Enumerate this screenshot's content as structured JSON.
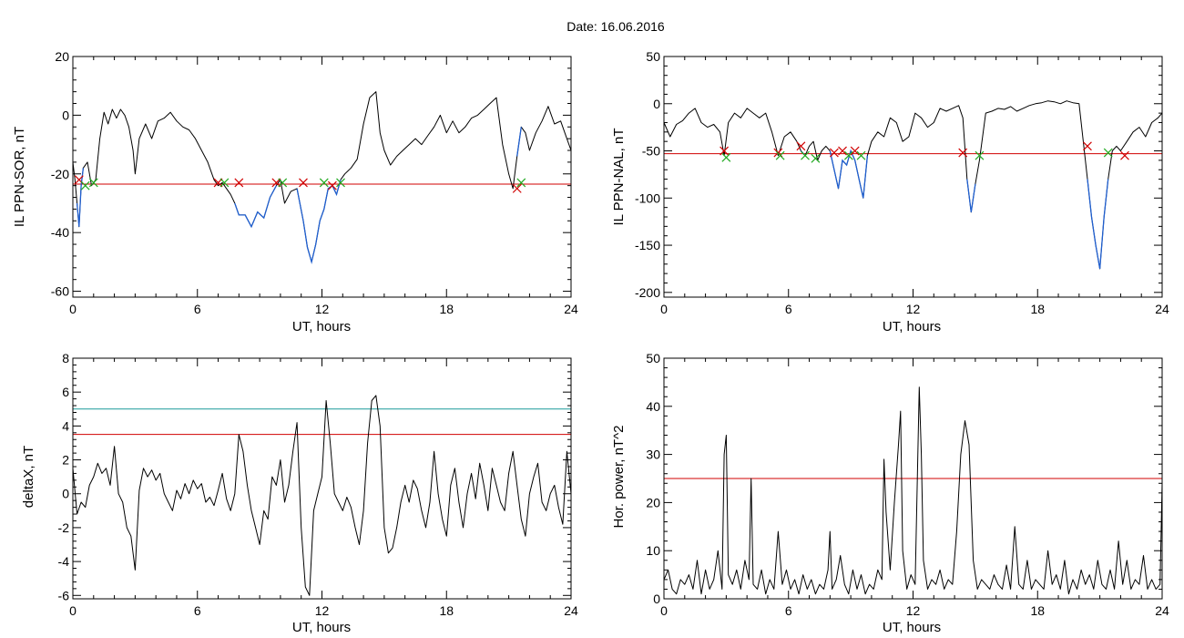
{
  "figure": {
    "title": "Date:  16.06.2016"
  },
  "colors": {
    "trace": "#000000",
    "lower_segment": "#1f5fd0",
    "threshold_red": "#d00000",
    "threshold_teal": "#1a9a9a",
    "marker_red": "#d00000",
    "marker_green": "#22aa22",
    "marker_blue": "#2266dd"
  },
  "chart_data": [
    {
      "type": "line",
      "title": "",
      "xlabel": "UT, hours",
      "ylabel": "IL PPN-SOR, nT",
      "xlim": [
        0,
        24
      ],
      "ylim": [
        -62,
        20
      ],
      "xticks": [
        0,
        6,
        12,
        18,
        24
      ],
      "yticks": [
        20,
        0,
        -20,
        -40,
        -60
      ],
      "grid": false,
      "threshold_lines": [
        {
          "y": -23.5,
          "color": "red"
        }
      ],
      "x": [
        0,
        0.1,
        0.2,
        0.3,
        0.4,
        0.5,
        0.7,
        0.9,
        1.1,
        1.3,
        1.5,
        1.7,
        1.9,
        2.1,
        2.3,
        2.5,
        2.7,
        2.9,
        3.0,
        3.2,
        3.5,
        3.8,
        4.1,
        4.4,
        4.7,
        5.0,
        5.3,
        5.6,
        5.9,
        6.2,
        6.5,
        6.8,
        7.0,
        7.2,
        7.4,
        7.6,
        7.8,
        8.0,
        8.3,
        8.6,
        8.9,
        9.2,
        9.5,
        9.8,
        10.0,
        10.2,
        10.5,
        10.8,
        11.1,
        11.3,
        11.5,
        11.7,
        11.9,
        12.1,
        12.3,
        12.5,
        12.7,
        12.9,
        13.1,
        13.4,
        13.7,
        14.0,
        14.3,
        14.6,
        14.8,
        15.0,
        15.3,
        15.6,
        15.9,
        16.2,
        16.5,
        16.8,
        17.1,
        17.4,
        17.7,
        18.0,
        18.3,
        18.6,
        18.9,
        19.2,
        19.5,
        19.8,
        20.1,
        20.4,
        20.7,
        21.0,
        21.2,
        21.4,
        21.6,
        21.8,
        22.0,
        22.3,
        22.6,
        22.9,
        23.2,
        23.5,
        23.8,
        24.0
      ],
      "y": [
        -16,
        -22,
        -30,
        -38,
        -24,
        -18,
        -16,
        -24,
        -22,
        -8,
        1,
        -3,
        2,
        -1,
        2,
        0,
        -4,
        -12,
        -20,
        -8,
        -3,
        -8,
        -2,
        -1,
        1,
        -2,
        -4,
        -5,
        -8,
        -12,
        -16,
        -22,
        -24,
        -23,
        -25,
        -27,
        -30,
        -34,
        -34,
        -38,
        -33,
        -35,
        -28,
        -24,
        -22,
        -30,
        -26,
        -25,
        -36,
        -45,
        -50,
        -44,
        -36,
        -32,
        -25,
        -24,
        -27,
        -22,
        -20,
        -18,
        -15,
        -3,
        6,
        8,
        -6,
        -12,
        -17,
        -14,
        -12,
        -10,
        -8,
        -10,
        -7,
        -4,
        0,
        -6,
        -2,
        -6,
        -4,
        -1,
        0,
        2,
        4,
        6,
        -10,
        -20,
        -25,
        -14,
        -4,
        -6,
        -12,
        -6,
        -2,
        3,
        -3,
        -2,
        -8,
        -12
      ],
      "segments_blue": [
        [
          0.2,
          0.6
        ],
        [
          7.8,
          9.9
        ],
        [
          10.6,
          12.9
        ],
        [
          21.4,
          21.7
        ]
      ],
      "markers": [
        {
          "x": 0.3,
          "y": -22,
          "color": "red"
        },
        {
          "x": 0.6,
          "y": -24,
          "color": "green"
        },
        {
          "x": 1.0,
          "y": -23,
          "color": "green"
        },
        {
          "x": 7.0,
          "y": -23,
          "color": "red"
        },
        {
          "x": 7.3,
          "y": -23,
          "color": "green"
        },
        {
          "x": 8.0,
          "y": -23,
          "color": "red"
        },
        {
          "x": 9.8,
          "y": -23,
          "color": "red"
        },
        {
          "x": 10.1,
          "y": -23,
          "color": "green"
        },
        {
          "x": 11.1,
          "y": -23,
          "color": "red"
        },
        {
          "x": 12.1,
          "y": -23,
          "color": "green"
        },
        {
          "x": 12.5,
          "y": -24,
          "color": "red"
        },
        {
          "x": 12.9,
          "y": -23,
          "color": "green"
        },
        {
          "x": 21.4,
          "y": -25,
          "color": "red"
        },
        {
          "x": 21.6,
          "y": -23,
          "color": "green"
        }
      ]
    },
    {
      "type": "line",
      "title": "",
      "xlabel": "UT, hours",
      "ylabel": "IL PPN-NAL, nT",
      "xlim": [
        0,
        24
      ],
      "ylim": [
        -205,
        50
      ],
      "xticks": [
        0,
        6,
        12,
        18,
        24
      ],
      "yticks": [
        50,
        0,
        -50,
        -100,
        -150,
        -200
      ],
      "grid": false,
      "threshold_lines": [
        {
          "y": -53,
          "color": "red"
        }
      ],
      "x": [
        0,
        0.3,
        0.6,
        0.9,
        1.2,
        1.5,
        1.8,
        2.1,
        2.4,
        2.7,
        2.9,
        3.1,
        3.4,
        3.7,
        4.0,
        4.3,
        4.6,
        4.9,
        5.2,
        5.5,
        5.8,
        6.1,
        6.4,
        6.6,
        6.8,
        7.0,
        7.2,
        7.4,
        7.6,
        7.8,
        8.0,
        8.2,
        8.4,
        8.6,
        8.8,
        9.0,
        9.2,
        9.4,
        9.6,
        9.8,
        10.0,
        10.3,
        10.6,
        10.9,
        11.2,
        11.5,
        11.8,
        12.1,
        12.4,
        12.7,
        13.0,
        13.3,
        13.6,
        13.9,
        14.2,
        14.4,
        14.6,
        14.8,
        15.0,
        15.2,
        15.5,
        15.8,
        16.1,
        16.4,
        16.7,
        17.0,
        17.3,
        17.6,
        17.9,
        18.2,
        18.5,
        18.8,
        19.1,
        19.4,
        19.7,
        20.0,
        20.2,
        20.4,
        20.6,
        20.8,
        21.0,
        21.2,
        21.4,
        21.6,
        21.8,
        22.0,
        22.3,
        22.6,
        22.9,
        23.2,
        23.5,
        23.8,
        24.0
      ],
      "y": [
        -20,
        -35,
        -22,
        -18,
        -10,
        -5,
        -20,
        -25,
        -22,
        -30,
        -55,
        -20,
        -10,
        -15,
        -5,
        -10,
        -15,
        -10,
        -30,
        -55,
        -35,
        -30,
        -40,
        -50,
        -55,
        -45,
        -40,
        -60,
        -50,
        -45,
        -50,
        -70,
        -90,
        -60,
        -65,
        -50,
        -60,
        -80,
        -100,
        -55,
        -40,
        -30,
        -35,
        -15,
        -20,
        -40,
        -35,
        -10,
        -15,
        -25,
        -20,
        -5,
        -8,
        -5,
        -2,
        -15,
        -80,
        -115,
        -85,
        -60,
        -10,
        -8,
        -5,
        -6,
        -3,
        -8,
        -5,
        -2,
        0,
        1,
        3,
        2,
        0,
        3,
        1,
        0,
        -40,
        -80,
        -120,
        -150,
        -175,
        -120,
        -80,
        -50,
        -45,
        -50,
        -40,
        -30,
        -25,
        -35,
        -20,
        -15,
        -10
      ],
      "segments_blue": [
        [
          2.9,
          3.0
        ],
        [
          5.4,
          5.6
        ],
        [
          6.6,
          6.8
        ],
        [
          8.0,
          9.8
        ],
        [
          14.6,
          15.0
        ],
        [
          20.4,
          21.4
        ]
      ],
      "markers": [
        {
          "x": 2.9,
          "y": -50,
          "color": "red"
        },
        {
          "x": 3.0,
          "y": -57,
          "color": "green"
        },
        {
          "x": 5.5,
          "y": -52,
          "color": "red"
        },
        {
          "x": 5.6,
          "y": -55,
          "color": "green"
        },
        {
          "x": 6.6,
          "y": -45,
          "color": "red"
        },
        {
          "x": 6.8,
          "y": -55,
          "color": "green"
        },
        {
          "x": 7.3,
          "y": -58,
          "color": "green"
        },
        {
          "x": 8.2,
          "y": -52,
          "color": "red"
        },
        {
          "x": 8.6,
          "y": -50,
          "color": "red"
        },
        {
          "x": 8.9,
          "y": -55,
          "color": "green"
        },
        {
          "x": 9.2,
          "y": -50,
          "color": "red"
        },
        {
          "x": 9.5,
          "y": -55,
          "color": "green"
        },
        {
          "x": 14.4,
          "y": -52,
          "color": "red"
        },
        {
          "x": 15.2,
          "y": -55,
          "color": "green"
        },
        {
          "x": 20.4,
          "y": -45,
          "color": "red"
        },
        {
          "x": 21.4,
          "y": -52,
          "color": "green"
        },
        {
          "x": 22.2,
          "y": -55,
          "color": "red"
        }
      ]
    },
    {
      "type": "line",
      "title": "",
      "xlabel": "UT, hours",
      "ylabel": "deltaX, nT",
      "xlim": [
        0,
        24
      ],
      "ylim": [
        -6.2,
        8
      ],
      "xticks": [
        0,
        6,
        12,
        18,
        24
      ],
      "yticks": [
        8,
        6,
        4,
        2,
        0,
        -2,
        -4,
        -6
      ],
      "grid": false,
      "threshold_lines": [
        {
          "y": 5.0,
          "color": "teal"
        },
        {
          "y": 3.5,
          "color": "red"
        }
      ],
      "x": [
        0,
        0.2,
        0.4,
        0.6,
        0.8,
        1.0,
        1.2,
        1.4,
        1.6,
        1.8,
        2.0,
        2.2,
        2.4,
        2.6,
        2.8,
        3.0,
        3.2,
        3.4,
        3.6,
        3.8,
        4.0,
        4.2,
        4.4,
        4.6,
        4.8,
        5.0,
        5.2,
        5.4,
        5.6,
        5.8,
        6.0,
        6.2,
        6.4,
        6.6,
        6.8,
        7.0,
        7.2,
        7.4,
        7.6,
        7.8,
        8.0,
        8.2,
        8.4,
        8.6,
        8.8,
        9.0,
        9.2,
        9.4,
        9.6,
        9.8,
        10.0,
        10.2,
        10.4,
        10.6,
        10.8,
        11.0,
        11.2,
        11.4,
        11.6,
        11.8,
        12.0,
        12.2,
        12.4,
        12.6,
        12.8,
        13.0,
        13.2,
        13.4,
        13.6,
        13.8,
        14.0,
        14.2,
        14.4,
        14.6,
        14.8,
        15.0,
        15.2,
        15.4,
        15.6,
        15.8,
        16.0,
        16.2,
        16.4,
        16.6,
        16.8,
        17.0,
        17.2,
        17.4,
        17.6,
        17.8,
        18.0,
        18.2,
        18.4,
        18.6,
        18.8,
        19.0,
        19.2,
        19.4,
        19.6,
        19.8,
        20.0,
        20.2,
        20.4,
        20.6,
        20.8,
        21.0,
        21.2,
        21.4,
        21.6,
        21.8,
        22.0,
        22.2,
        22.4,
        22.6,
        22.8,
        23.0,
        23.2,
        23.4,
        23.6,
        23.8,
        24.0
      ],
      "y": [
        1.5,
        -1.2,
        -0.5,
        -0.8,
        0.5,
        1.0,
        1.8,
        1.2,
        1.5,
        0.5,
        2.8,
        0.0,
        -0.5,
        -2.0,
        -2.5,
        -4.5,
        0.2,
        1.5,
        1.0,
        1.4,
        0.8,
        1.2,
        0.0,
        -0.5,
        -1.0,
        0.2,
        -0.3,
        0.6,
        0.0,
        0.8,
        0.3,
        0.6,
        -0.5,
        -0.2,
        -0.7,
        0.2,
        1.2,
        -0.3,
        -1.0,
        0.0,
        3.5,
        2.5,
        0.5,
        -1.0,
        -2.0,
        -3.0,
        -1.0,
        -1.5,
        1.0,
        0.5,
        2.0,
        -0.5,
        0.5,
        2.5,
        4.2,
        -2.0,
        -5.5,
        -6.0,
        -1.0,
        0.0,
        1.0,
        5.5,
        3.0,
        0.0,
        -0.5,
        -1.0,
        -0.2,
        -0.8,
        -2.0,
        -3.0,
        -1.0,
        3.0,
        5.5,
        5.8,
        4.0,
        -2.0,
        -3.5,
        -3.2,
        -2.0,
        -0.5,
        0.5,
        -0.5,
        0.8,
        0.3,
        -1.0,
        -2.0,
        -0.5,
        2.5,
        0.0,
        -1.5,
        -2.5,
        0.5,
        1.5,
        -0.5,
        -2.0,
        0.0,
        1.2,
        -0.3,
        1.8,
        0.5,
        -1.0,
        1.5,
        0.5,
        -0.5,
        -1.0,
        1.2,
        2.5,
        0.5,
        -1.5,
        -2.5,
        0.0,
        1.0,
        1.8,
        -0.5,
        -1.0,
        0.0,
        0.5,
        -0.8,
        -1.8,
        2.5,
        0.0
      ],
      "segments_blue": [],
      "markers": []
    },
    {
      "type": "line",
      "title": "",
      "xlabel": "UT, hours",
      "ylabel": "Hor. power, nT^2",
      "xlim": [
        0,
        24
      ],
      "ylim": [
        0,
        50
      ],
      "xticks": [
        0,
        6,
        12,
        18,
        24
      ],
      "yticks": [
        50,
        40,
        30,
        20,
        10,
        0
      ],
      "grid": false,
      "threshold_lines": [
        {
          "y": 25,
          "color": "red"
        }
      ],
      "x": [
        0,
        0.2,
        0.4,
        0.6,
        0.8,
        1.0,
        1.2,
        1.4,
        1.6,
        1.8,
        2.0,
        2.2,
        2.4,
        2.6,
        2.8,
        2.9,
        3.0,
        3.1,
        3.3,
        3.5,
        3.7,
        3.9,
        4.1,
        4.2,
        4.3,
        4.5,
        4.7,
        4.9,
        5.1,
        5.3,
        5.5,
        5.7,
        5.9,
        6.1,
        6.3,
        6.5,
        6.7,
        6.9,
        7.1,
        7.3,
        7.5,
        7.7,
        7.9,
        8.0,
        8.1,
        8.3,
        8.5,
        8.7,
        8.9,
        9.1,
        9.3,
        9.5,
        9.7,
        9.9,
        10.1,
        10.3,
        10.5,
        10.6,
        10.7,
        10.9,
        11.1,
        11.3,
        11.4,
        11.5,
        11.7,
        11.9,
        12.1,
        12.3,
        12.4,
        12.5,
        12.7,
        12.9,
        13.1,
        13.3,
        13.5,
        13.7,
        13.9,
        14.1,
        14.3,
        14.5,
        14.7,
        14.9,
        15.1,
        15.3,
        15.5,
        15.7,
        15.9,
        16.1,
        16.3,
        16.5,
        16.7,
        16.9,
        17.1,
        17.3,
        17.5,
        17.7,
        17.9,
        18.1,
        18.3,
        18.5,
        18.7,
        18.9,
        19.1,
        19.3,
        19.5,
        19.7,
        19.9,
        20.1,
        20.3,
        20.5,
        20.7,
        20.9,
        21.1,
        21.3,
        21.5,
        21.7,
        21.9,
        22.1,
        22.3,
        22.5,
        22.7,
        22.9,
        23.1,
        23.3,
        23.5,
        23.7,
        23.9,
        24.0
      ],
      "y": [
        4,
        6,
        2,
        1,
        4,
        3,
        5,
        2,
        8,
        1,
        6,
        2,
        4,
        10,
        2,
        30,
        34,
        5,
        3,
        6,
        2,
        8,
        4,
        25,
        3,
        2,
        6,
        1,
        4,
        2,
        14,
        3,
        6,
        2,
        4,
        1,
        5,
        2,
        4,
        1,
        3,
        2,
        6,
        14,
        2,
        4,
        9,
        3,
        1,
        6,
        2,
        5,
        1,
        3,
        2,
        6,
        4,
        29,
        18,
        6,
        20,
        32,
        39,
        10,
        2,
        5,
        3,
        44,
        30,
        8,
        2,
        4,
        3,
        6,
        2,
        4,
        3,
        14,
        30,
        37,
        32,
        8,
        2,
        4,
        3,
        2,
        5,
        3,
        2,
        7,
        2,
        15,
        3,
        2,
        8,
        2,
        4,
        3,
        2,
        10,
        3,
        5,
        2,
        8,
        1,
        4,
        2,
        6,
        3,
        5,
        2,
        8,
        3,
        2,
        6,
        2,
        12,
        3,
        8,
        2,
        4,
        3,
        9,
        2,
        4,
        2,
        3,
        24
      ]
    }
  ]
}
